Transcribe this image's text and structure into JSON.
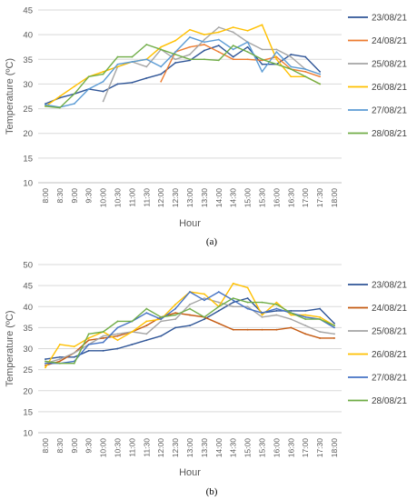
{
  "chart_data": [
    {
      "panel_label": "(a)",
      "type": "line",
      "xlabel": "Hour",
      "ylabel": "Temperature (ºC)",
      "ylim": [
        10,
        45
      ],
      "y_ticks": [
        10,
        15,
        20,
        25,
        30,
        35,
        40,
        45
      ],
      "grid": true,
      "legend_position": "right",
      "categories": [
        "8:00",
        "8:30",
        "9:00",
        "9:30",
        "10:00",
        "10:30",
        "11:00",
        "11:30",
        "12:00",
        "12:30",
        "13:00",
        "13:30",
        "14:00",
        "14:30",
        "15:00",
        "15:30",
        "16:00",
        "16:30",
        "17:00",
        "17:30",
        "18:00"
      ],
      "series": [
        {
          "name": "23/08/21",
          "color": "#2f5597",
          "values": [
            26.0,
            27.2,
            28.0,
            29.0,
            28.5,
            30.0,
            30.3,
            31.2,
            32.0,
            34.3,
            34.8,
            36.8,
            37.8,
            35.5,
            37.5,
            34.0,
            34.0,
            36.0,
            35.5,
            32.5,
            null
          ]
        },
        {
          "name": "24/08/21",
          "color": "#ed7d31",
          "values": [
            null,
            null,
            null,
            null,
            null,
            null,
            null,
            null,
            30.5,
            36.5,
            37.5,
            38.0,
            36.5,
            35.0,
            35.0,
            34.8,
            35.5,
            33.0,
            32.5,
            31.5,
            null
          ]
        },
        {
          "name": "25/08/21",
          "color": "#a5a5a5",
          "values": [
            null,
            null,
            null,
            null,
            26.5,
            33.5,
            34.5,
            33.5,
            37.0,
            35.0,
            36.0,
            39.0,
            41.5,
            40.5,
            38.5,
            37.0,
            37.0,
            35.5,
            33.0,
            32.0,
            null
          ]
        },
        {
          "name": "26/08/21",
          "color": "#ffc000",
          "values": [
            25.5,
            27.5,
            29.5,
            31.5,
            32.5,
            33.5,
            34.5,
            35.0,
            37.5,
            38.8,
            41.0,
            40.0,
            40.5,
            41.5,
            40.8,
            42.0,
            35.0,
            31.5,
            31.5,
            30.0,
            null
          ]
        },
        {
          "name": "27/08/21",
          "color": "#5b9bd5",
          "values": [
            25.8,
            25.3,
            26.0,
            29.0,
            30.5,
            34.0,
            34.5,
            35.0,
            33.5,
            36.5,
            39.5,
            38.5,
            39.0,
            37.0,
            38.5,
            32.5,
            36.5,
            33.5,
            33.0,
            32.0,
            null
          ]
        },
        {
          "name": "28/08/21",
          "color": "#70ad47",
          "values": [
            25.5,
            25.2,
            28.0,
            31.5,
            32.0,
            35.5,
            35.5,
            38.0,
            37.0,
            36.0,
            35.0,
            35.0,
            34.8,
            37.8,
            36.5,
            35.0,
            34.0,
            33.0,
            31.5,
            30.0,
            null
          ]
        }
      ]
    },
    {
      "panel_label": "(b)",
      "type": "line",
      "xlabel": "Hour",
      "ylabel": "Temperature (ºC)",
      "ylim": [
        10,
        50
      ],
      "y_ticks": [
        10,
        15,
        20,
        25,
        30,
        35,
        40,
        45,
        50
      ],
      "grid": true,
      "legend_position": "right",
      "categories": [
        "8:00",
        "8:30",
        "9:00",
        "9:30",
        "10:00",
        "10:30",
        "11:00",
        "11:30",
        "12:00",
        "12:30",
        "13:00",
        "13:30",
        "14:00",
        "14:30",
        "15:00",
        "15:30",
        "16:00",
        "16:30",
        "17:00",
        "17:30",
        "18:00"
      ],
      "series": [
        {
          "name": "23/08/21",
          "color": "#2f5597",
          "values": [
            27.5,
            28.0,
            28.0,
            29.5,
            29.5,
            30.0,
            31.0,
            32.0,
            33.0,
            35.0,
            35.5,
            37.0,
            39.0,
            41.0,
            42.0,
            38.5,
            39.0,
            39.0,
            39.0,
            39.5,
            36.0
          ]
        },
        {
          "name": "24/08/21",
          "color": "#c55a11",
          "values": [
            26.0,
            27.0,
            29.0,
            32.0,
            32.5,
            33.0,
            34.0,
            35.5,
            37.5,
            38.5,
            38.0,
            37.5,
            36.0,
            34.5,
            34.5,
            34.5,
            34.5,
            35.0,
            33.5,
            32.5,
            32.5
          ]
        },
        {
          "name": "25/08/21",
          "color": "#a5a5a5",
          "values": [
            26.5,
            27.5,
            29.0,
            31.0,
            33.0,
            33.5,
            34.0,
            33.5,
            36.5,
            37.0,
            40.5,
            42.0,
            41.0,
            40.0,
            40.0,
            37.5,
            38.0,
            37.0,
            35.5,
            34.0,
            33.5
          ]
        },
        {
          "name": "26/08/21",
          "color": "#ffc000",
          "values": [
            25.5,
            31.0,
            30.5,
            32.5,
            34.0,
            32.0,
            34.0,
            36.5,
            37.0,
            40.5,
            43.5,
            43.0,
            40.0,
            45.5,
            44.5,
            38.0,
            41.0,
            38.0,
            38.0,
            37.5,
            35.5
          ]
        },
        {
          "name": "27/08/21",
          "color": "#4472c4",
          "values": [
            26.5,
            26.5,
            27.0,
            31.0,
            31.5,
            35.0,
            36.5,
            38.5,
            37.0,
            39.5,
            43.5,
            41.5,
            43.5,
            41.5,
            39.5,
            38.5,
            39.5,
            38.5,
            37.5,
            37.0,
            35.0
          ]
        },
        {
          "name": "28/08/21",
          "color": "#70ad47",
          "values": [
            27.0,
            26.5,
            26.5,
            33.5,
            34.0,
            36.5,
            36.5,
            39.5,
            37.5,
            38.0,
            39.5,
            37.5,
            40.0,
            42.0,
            41.0,
            41.0,
            40.5,
            38.5,
            37.0,
            37.0,
            35.5
          ]
        }
      ]
    }
  ]
}
